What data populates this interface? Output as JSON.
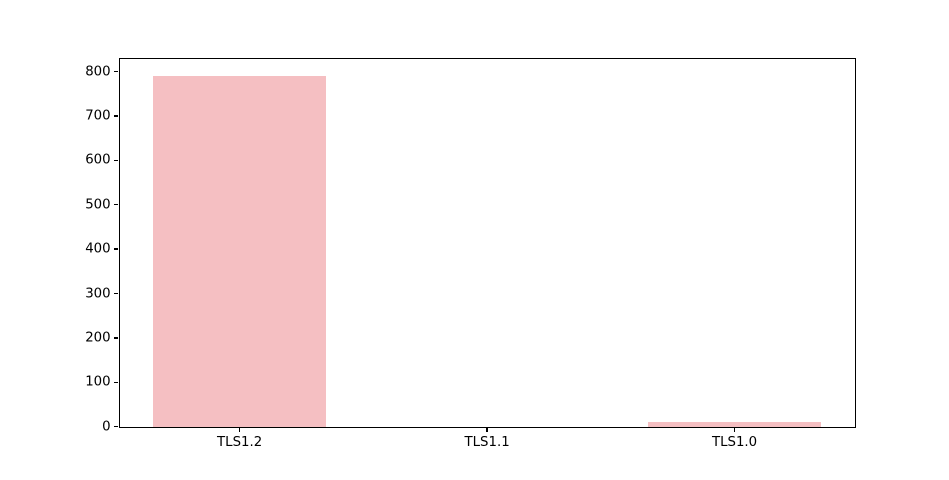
{
  "figure": {
    "background_color": "#ffffff",
    "text_color": "#000000",
    "spine_color": "#000000"
  },
  "chart_data": {
    "type": "bar",
    "title": "",
    "xlabel": "",
    "ylabel": "",
    "categories": [
      "TLS1.2",
      "TLS1.1",
      "TLS1.0"
    ],
    "values": [
      790,
      0,
      10
    ],
    "yticks": [
      0,
      100,
      200,
      300,
      400,
      500,
      600,
      700,
      800
    ],
    "ylim": [
      0,
      829.5
    ],
    "xlim": [
      -0.485,
      2.485
    ],
    "bar_width_units": 0.7,
    "bar_color": "#f5bfc2",
    "grid": false,
    "legend": null
  }
}
